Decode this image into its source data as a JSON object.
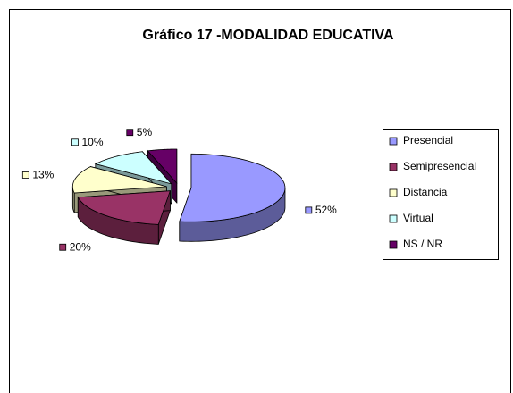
{
  "chart_data": {
    "type": "pie3d",
    "title": "Gráfico 17 -MODALIDAD EDUCATIVA",
    "categories": [
      "Presencial",
      "Semipresencial",
      "Distancia",
      "Virtual",
      "NS / NR"
    ],
    "values": [
      52,
      20,
      13,
      10,
      5
    ],
    "value_labels": [
      "52%",
      "20%",
      "13%",
      "10%",
      "5%"
    ],
    "colors": [
      "#9999FF",
      "#993366",
      "#FFFFCC",
      "#CCFFFF",
      "#660066"
    ],
    "legend": "right"
  }
}
